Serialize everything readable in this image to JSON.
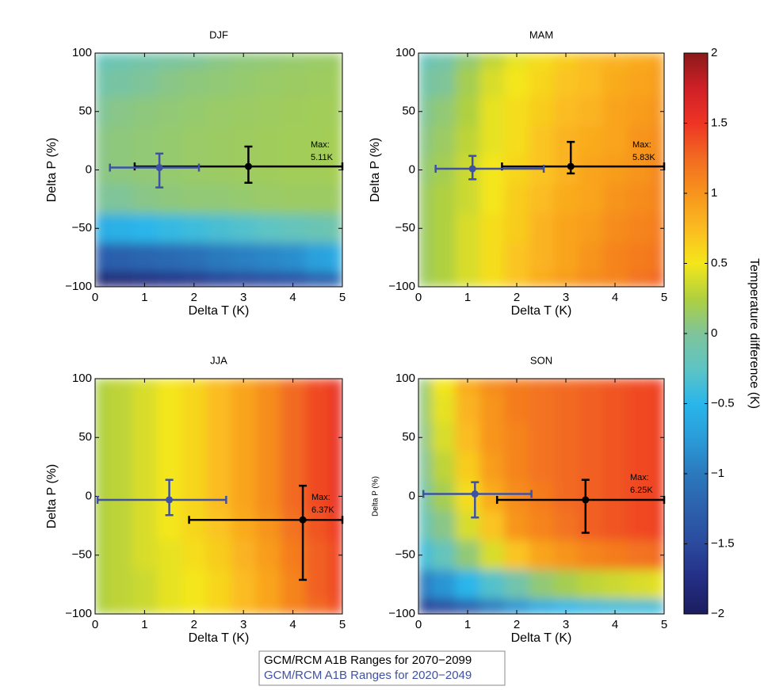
{
  "chart_data": [
    {
      "type": "contour",
      "title": "DJF",
      "xlabel": "Delta T (K)",
      "ylabel": "Delta P (%)",
      "xlim": [
        0,
        5
      ],
      "ylim": [
        -100,
        100
      ],
      "xticks": [
        0,
        1,
        2,
        3,
        4,
        5
      ],
      "yticks": [
        {
          "value": -100,
          "label": "−100"
        },
        {
          "value": -50,
          "label": "−50"
        },
        0,
        50,
        100
      ],
      "annotation": [
        "Max:",
        "5.11K"
      ],
      "field": {
        "x": [
          0,
          0.5,
          1,
          1.5,
          2,
          2.5,
          3,
          3.5,
          4,
          4.5,
          5
        ],
        "y": [
          100,
          75,
          50,
          25,
          0,
          -25,
          -50,
          -75,
          -100
        ],
        "z": [
          [
            -0.2,
            -0.15,
            -0.1,
            -0.05,
            0,
            0.05,
            0.08,
            0.1,
            0.12,
            0.14,
            0.15
          ],
          [
            -0.1,
            -0.05,
            0,
            0.05,
            0.08,
            0.1,
            0.12,
            0.14,
            0.15,
            0.16,
            0.17
          ],
          [
            0,
            0.05,
            0.08,
            0.1,
            0.12,
            0.14,
            0.15,
            0.16,
            0.17,
            0.18,
            0.18
          ],
          [
            0.05,
            0.08,
            0.1,
            0.12,
            0.14,
            0.15,
            0.16,
            0.17,
            0.18,
            0.18,
            0.2
          ],
          [
            0.05,
            0.08,
            0.1,
            0.12,
            0.14,
            0.15,
            0.16,
            0.17,
            0.18,
            0.18,
            0.2
          ],
          [
            0,
            0,
            0.05,
            0.08,
            0.1,
            0.1,
            0.12,
            0.14,
            0.15,
            0.15,
            0.15
          ],
          [
            -0.6,
            -0.55,
            -0.5,
            -0.45,
            -0.4,
            -0.35,
            -0.3,
            -0.25,
            -0.2,
            -0.15,
            -0.1
          ],
          [
            -1.3,
            -1.25,
            -1.2,
            -1.15,
            -1.1,
            -1.0,
            -0.95,
            -0.9,
            -0.85,
            -0.7,
            -0.6
          ],
          [
            -1.9,
            -1.85,
            -1.8,
            -1.75,
            -1.7,
            -1.6,
            -1.55,
            -1.5,
            -1.45,
            -1.3,
            -1.2
          ]
        ]
      },
      "series": [
        {
          "name": "GCM/RCM A1B Ranges for 2070−2099",
          "color": "#000000",
          "x": 3.1,
          "y": 3,
          "xrange": [
            0.8,
            5
          ],
          "yrange": [
            -11,
            20
          ]
        },
        {
          "name": "GCM/RCM A1B Ranges for 2020−2049",
          "color": "#3f51a3",
          "x": 1.3,
          "y": 2,
          "xrange": [
            0.3,
            2.1
          ],
          "yrange": [
            -15,
            14
          ]
        }
      ]
    },
    {
      "type": "contour",
      "title": "MAM",
      "xlabel": "Delta T (K)",
      "ylabel": "Delta P (%)",
      "xlim": [
        0,
        5
      ],
      "ylim": [
        -100,
        100
      ],
      "xticks": [
        0,
        1,
        2,
        3,
        4,
        5
      ],
      "yticks": [
        {
          "value": -100,
          "label": "−100"
        },
        {
          "value": -50,
          "label": "−50"
        },
        0,
        50,
        100
      ],
      "annotation": [
        "Max:",
        "5.83K"
      ],
      "field": {
        "x": [
          0,
          0.5,
          1,
          1.5,
          2,
          2.5,
          3,
          3.5,
          4,
          4.5,
          5
        ],
        "y": [
          100,
          75,
          50,
          25,
          0,
          -25,
          -50,
          -75,
          -100
        ],
        "z": [
          [
            -0.2,
            -0.1,
            0.1,
            0.3,
            0.45,
            0.55,
            0.65,
            0.75,
            0.8,
            0.85,
            0.9
          ],
          [
            -0.1,
            0,
            0.2,
            0.4,
            0.5,
            0.6,
            0.7,
            0.75,
            0.85,
            0.9,
            0.95
          ],
          [
            0,
            0.1,
            0.25,
            0.45,
            0.55,
            0.65,
            0.75,
            0.8,
            0.9,
            0.95,
            1.0
          ],
          [
            0.05,
            0.15,
            0.3,
            0.45,
            0.55,
            0.7,
            0.8,
            0.85,
            0.9,
            1.0,
            1.05
          ],
          [
            0.1,
            0.2,
            0.35,
            0.5,
            0.6,
            0.7,
            0.8,
            0.9,
            0.95,
            1.0,
            1.1
          ],
          [
            0.15,
            0.25,
            0.35,
            0.5,
            0.65,
            0.75,
            0.85,
            0.9,
            1.0,
            1.05,
            1.1
          ],
          [
            0.15,
            0.25,
            0.4,
            0.55,
            0.65,
            0.8,
            0.9,
            0.95,
            1.05,
            1.1,
            1.15
          ],
          [
            0.15,
            0.25,
            0.4,
            0.55,
            0.7,
            0.8,
            0.9,
            1.0,
            1.1,
            1.15,
            1.2
          ],
          [
            0.15,
            0.25,
            0.4,
            0.55,
            0.7,
            0.85,
            0.95,
            1.05,
            1.1,
            1.2,
            1.3
          ]
        ]
      },
      "series": [
        {
          "name": "GCM/RCM A1B Ranges for 2070−2099",
          "color": "#000000",
          "x": 3.1,
          "y": 3,
          "xrange": [
            1.7,
            5
          ],
          "yrange": [
            -3,
            24
          ]
        },
        {
          "name": "GCM/RCM A1B Ranges for 2020−2049",
          "color": "#3f51a3",
          "x": 1.1,
          "y": 1,
          "xrange": [
            0.35,
            2.55
          ],
          "yrange": [
            -8,
            12
          ]
        }
      ]
    },
    {
      "type": "contour",
      "title": "JJA",
      "xlabel": "Delta T (K)",
      "ylabel": "Delta P (%)",
      "xlim": [
        0,
        5
      ],
      "ylim": [
        -100,
        100
      ],
      "xticks": [
        0,
        1,
        2,
        3,
        4,
        5
      ],
      "yticks": [
        {
          "value": -100,
          "label": "−100"
        },
        {
          "value": -50,
          "label": "−50"
        },
        0,
        50,
        100
      ],
      "annotation": [
        "Max:",
        "6.37K"
      ],
      "field": {
        "x": [
          0,
          0.5,
          1,
          1.5,
          2,
          2.5,
          3,
          3.5,
          4,
          4.5,
          5
        ],
        "y": [
          100,
          75,
          50,
          25,
          0,
          -25,
          -50,
          -75,
          -100
        ],
        "z": [
          [
            0.25,
            0.3,
            0.4,
            0.5,
            0.6,
            0.75,
            0.9,
            1.05,
            1.25,
            1.4,
            1.55
          ],
          [
            0.25,
            0.3,
            0.4,
            0.5,
            0.6,
            0.75,
            0.9,
            1.05,
            1.25,
            1.4,
            1.55
          ],
          [
            0.25,
            0.3,
            0.4,
            0.5,
            0.6,
            0.75,
            0.9,
            1.05,
            1.25,
            1.4,
            1.55
          ],
          [
            0.25,
            0.3,
            0.4,
            0.5,
            0.6,
            0.75,
            0.9,
            1.05,
            1.25,
            1.4,
            1.55
          ],
          [
            0.25,
            0.3,
            0.4,
            0.5,
            0.6,
            0.75,
            0.9,
            1.05,
            1.25,
            1.4,
            1.55
          ],
          [
            0.25,
            0.3,
            0.4,
            0.5,
            0.6,
            0.7,
            0.85,
            1.0,
            1.2,
            1.35,
            1.5
          ],
          [
            0.25,
            0.3,
            0.4,
            0.45,
            0.55,
            0.65,
            0.8,
            0.95,
            1.15,
            1.3,
            1.45
          ],
          [
            0.25,
            0.3,
            0.35,
            0.45,
            0.5,
            0.6,
            0.75,
            0.9,
            1.1,
            1.3,
            1.45
          ],
          [
            0.25,
            0.3,
            0.35,
            0.45,
            0.5,
            0.6,
            0.75,
            0.9,
            1.1,
            1.25,
            1.4
          ]
        ]
      },
      "series": [
        {
          "name": "GCM/RCM A1B Ranges for 2070−2099",
          "color": "#000000",
          "x": 4.2,
          "y": -20,
          "xrange": [
            1.9,
            5
          ],
          "yrange": [
            -71,
            9
          ]
        },
        {
          "name": "GCM/RCM A1B Ranges for 2020−2049",
          "color": "#3f51a3",
          "x": 1.5,
          "y": -3,
          "xrange": [
            0.05,
            2.65
          ],
          "yrange": [
            -16,
            14
          ]
        }
      ]
    },
    {
      "type": "contour",
      "title": "SON",
      "xlabel": "Delta T (K)",
      "ylabel": "Delta P (%)",
      "xlim": [
        0,
        5
      ],
      "ylim": [
        -100,
        100
      ],
      "xticks": [
        0,
        1,
        2,
        3,
        4,
        5
      ],
      "yticks": [
        {
          "value": -100,
          "label": "−100"
        },
        {
          "value": -50,
          "label": "−50"
        },
        0,
        50,
        100
      ],
      "annotation": [
        "Max:",
        "6.25K"
      ],
      "field": {
        "x": [
          0,
          0.5,
          1,
          1.5,
          2,
          2.5,
          3,
          3.5,
          4,
          4.5,
          5
        ],
        "y": [
          100,
          75,
          50,
          25,
          0,
          -25,
          -50,
          -75,
          -100
        ],
        "z": [
          [
            0.1,
            0.5,
            0.85,
            1.05,
            1.15,
            1.2,
            1.25,
            1.3,
            1.35,
            1.4,
            1.45
          ],
          [
            0.1,
            0.45,
            0.8,
            1.0,
            1.15,
            1.2,
            1.25,
            1.3,
            1.35,
            1.4,
            1.45
          ],
          [
            0.05,
            0.4,
            0.75,
            1.0,
            1.1,
            1.2,
            1.25,
            1.3,
            1.35,
            1.4,
            1.45
          ],
          [
            0,
            0.3,
            0.65,
            0.95,
            1.1,
            1.2,
            1.25,
            1.3,
            1.35,
            1.4,
            1.45
          ],
          [
            -0.1,
            0.2,
            0.55,
            0.85,
            1.05,
            1.15,
            1.25,
            1.3,
            1.35,
            1.4,
            1.45
          ],
          [
            -0.2,
            0.05,
            0.4,
            0.7,
            1.0,
            1.1,
            1.2,
            1.3,
            1.35,
            1.4,
            1.45
          ],
          [
            -0.4,
            -0.2,
            0.1,
            0.4,
            0.7,
            0.9,
            1.0,
            1.1,
            1.15,
            1.2,
            1.25
          ],
          [
            -1.0,
            -0.8,
            -0.5,
            -0.3,
            -0.1,
            0.1,
            0.2,
            0.3,
            0.35,
            0.4,
            0.45
          ],
          [
            -1.6,
            -1.5,
            -1.3,
            -1.0,
            -0.8,
            -0.6,
            -0.5,
            -0.45,
            -0.4,
            -0.4,
            -0.4
          ]
        ]
      },
      "series": [
        {
          "name": "GCM/RCM A1B Ranges for 2070−2099",
          "color": "#000000",
          "x": 3.4,
          "y": -3,
          "xrange": [
            1.6,
            5
          ],
          "yrange": [
            -31,
            14
          ]
        },
        {
          "name": "GCM/RCM A1B Ranges for 2020−2049",
          "color": "#3f51a3",
          "x": 1.15,
          "y": 2,
          "xrange": [
            0.1,
            2.3
          ],
          "yrange": [
            -18,
            12
          ]
        }
      ]
    }
  ],
  "colorbar": {
    "label": "Temperature difference (K)",
    "clim": [
      -2,
      2
    ],
    "ticks": [
      {
        "value": -2,
        "label": "−2"
      },
      {
        "value": -1.5,
        "label": "−1.5"
      },
      {
        "value": -1,
        "label": "−1"
      },
      {
        "value": -0.5,
        "label": "−0.5"
      },
      0,
      0.5,
      1,
      1.5,
      2
    ],
    "colormap": [
      "#1b1d5e",
      "#232e84",
      "#2b4a9e",
      "#2c60ad",
      "#2b79bd",
      "#2a9cd8",
      "#29b6ea",
      "#5ec4c4",
      "#7fc49a",
      "#afd03f",
      "#f4e61a",
      "#fbbb21",
      "#f7941d",
      "#f26b21",
      "#ee3424",
      "#cf2027",
      "#8b1a1a"
    ]
  }
}
